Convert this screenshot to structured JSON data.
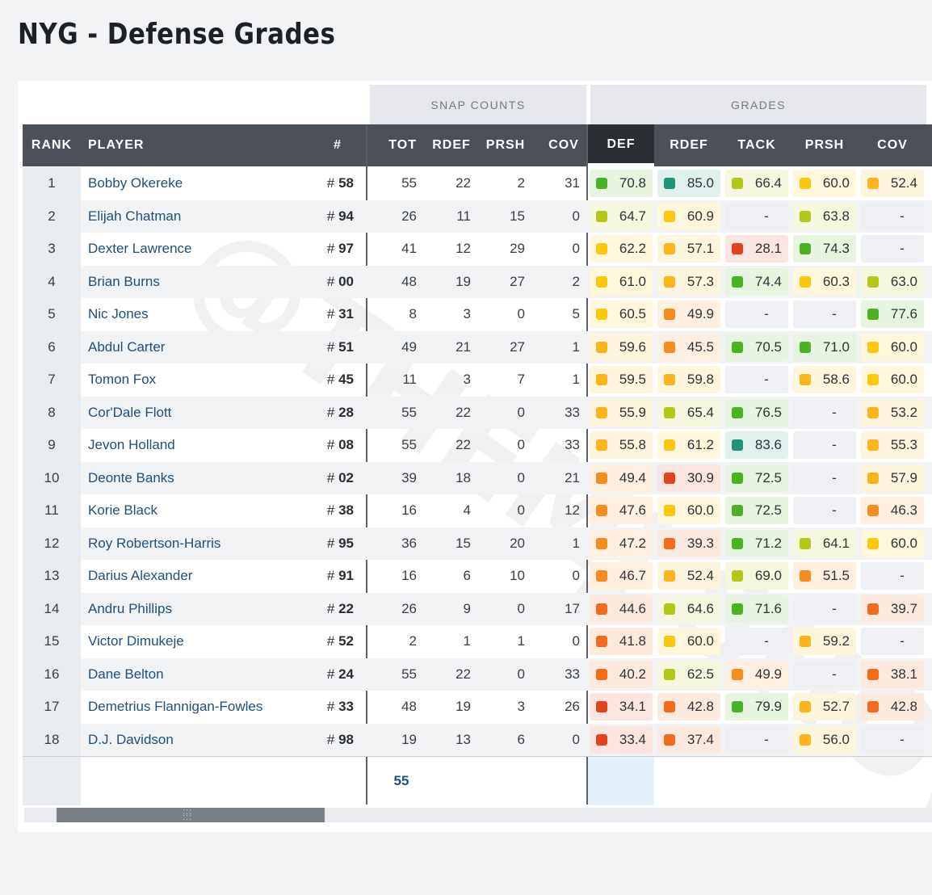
{
  "title": "NYG - Defense Grades",
  "watermark": "@THEMJ SHOW",
  "groups": {
    "snap": "SNAP COUNTS",
    "grades": "GRADES"
  },
  "headers": {
    "rank": "RANK",
    "player": "PLAYER",
    "num": "#",
    "tot": "TOT",
    "rdef": "RDEF",
    "prsh": "PRSH",
    "cov": "COV",
    "g_def": "DEF",
    "g_rdef": "RDEF",
    "g_tack": "TACK",
    "g_prsh": "PRSH",
    "g_cov": "COV"
  },
  "rows": [
    {
      "rank": "1",
      "name": "Bobby Okereke",
      "num": "58",
      "tot": "55",
      "rdef": "22",
      "prsh": "2",
      "cov": "31",
      "grades": [
        "70.8",
        "85.0",
        "66.4",
        "60.0",
        "52.4"
      ]
    },
    {
      "rank": "2",
      "name": "Elijah Chatman",
      "num": "94",
      "tot": "26",
      "rdef": "11",
      "prsh": "15",
      "cov": "0",
      "grades": [
        "64.7",
        "60.9",
        "-",
        "63.8",
        "-"
      ]
    },
    {
      "rank": "3",
      "name": "Dexter Lawrence",
      "num": "97",
      "tot": "41",
      "rdef": "12",
      "prsh": "29",
      "cov": "0",
      "grades": [
        "62.2",
        "57.1",
        "28.1",
        "74.3",
        "-"
      ]
    },
    {
      "rank": "4",
      "name": "Brian Burns",
      "num": "00",
      "tot": "48",
      "rdef": "19",
      "prsh": "27",
      "cov": "2",
      "grades": [
        "61.0",
        "57.3",
        "74.4",
        "60.3",
        "63.0"
      ]
    },
    {
      "rank": "5",
      "name": "Nic Jones",
      "num": "31",
      "tot": "8",
      "rdef": "3",
      "prsh": "0",
      "cov": "5",
      "grades": [
        "60.5",
        "49.9",
        "-",
        "-",
        "77.6"
      ]
    },
    {
      "rank": "6",
      "name": "Abdul Carter",
      "num": "51",
      "tot": "49",
      "rdef": "21",
      "prsh": "27",
      "cov": "1",
      "grades": [
        "59.6",
        "45.5",
        "70.5",
        "71.0",
        "60.0"
      ]
    },
    {
      "rank": "7",
      "name": "Tomon Fox",
      "num": "45",
      "tot": "11",
      "rdef": "3",
      "prsh": "7",
      "cov": "1",
      "grades": [
        "59.5",
        "59.8",
        "-",
        "58.6",
        "60.0"
      ]
    },
    {
      "rank": "8",
      "name": "Cor'Dale Flott",
      "num": "28",
      "tot": "55",
      "rdef": "22",
      "prsh": "0",
      "cov": "33",
      "grades": [
        "55.9",
        "65.4",
        "76.5",
        "-",
        "53.2"
      ]
    },
    {
      "rank": "9",
      "name": "Jevon Holland",
      "num": "08",
      "tot": "55",
      "rdef": "22",
      "prsh": "0",
      "cov": "33",
      "grades": [
        "55.8",
        "61.2",
        "83.6",
        "-",
        "55.3"
      ]
    },
    {
      "rank": "10",
      "name": "Deonte Banks",
      "num": "02",
      "tot": "39",
      "rdef": "18",
      "prsh": "0",
      "cov": "21",
      "grades": [
        "49.4",
        "30.9",
        "72.5",
        "-",
        "57.9"
      ]
    },
    {
      "rank": "11",
      "name": "Korie Black",
      "num": "38",
      "tot": "16",
      "rdef": "4",
      "prsh": "0",
      "cov": "12",
      "grades": [
        "47.6",
        "60.0",
        "72.5",
        "-",
        "46.3"
      ]
    },
    {
      "rank": "12",
      "name": "Roy Robertson-Harris",
      "num": "95",
      "tot": "36",
      "rdef": "15",
      "prsh": "20",
      "cov": "1",
      "grades": [
        "47.2",
        "39.3",
        "71.2",
        "64.1",
        "60.0"
      ]
    },
    {
      "rank": "13",
      "name": "Darius Alexander",
      "num": "91",
      "tot": "16",
      "rdef": "6",
      "prsh": "10",
      "cov": "0",
      "grades": [
        "46.7",
        "52.4",
        "69.0",
        "51.5",
        "-"
      ]
    },
    {
      "rank": "14",
      "name": "Andru Phillips",
      "num": "22",
      "tot": "26",
      "rdef": "9",
      "prsh": "0",
      "cov": "17",
      "grades": [
        "44.6",
        "64.6",
        "71.6",
        "-",
        "39.7"
      ]
    },
    {
      "rank": "15",
      "name": "Victor Dimukeje",
      "num": "52",
      "tot": "2",
      "rdef": "1",
      "prsh": "1",
      "cov": "0",
      "grades": [
        "41.8",
        "60.0",
        "-",
        "59.2",
        "-"
      ]
    },
    {
      "rank": "16",
      "name": "Dane Belton",
      "num": "24",
      "tot": "55",
      "rdef": "22",
      "prsh": "0",
      "cov": "33",
      "grades": [
        "40.2",
        "62.5",
        "49.9",
        "-",
        "38.1"
      ]
    },
    {
      "rank": "17",
      "name": "Demetrius Flannigan-Fowles",
      "num": "33",
      "tot": "48",
      "rdef": "19",
      "prsh": "3",
      "cov": "26",
      "grades": [
        "34.1",
        "42.8",
        "79.9",
        "52.7",
        "42.8"
      ]
    },
    {
      "rank": "18",
      "name": "D.J. Davidson",
      "num": "98",
      "tot": "19",
      "rdef": "13",
      "prsh": "6",
      "cov": "0",
      "grades": [
        "33.4",
        "37.4",
        "-",
        "56.0",
        "-"
      ]
    }
  ],
  "total": {
    "tot": "55"
  },
  "hash_symbol": "#",
  "colors": {
    "header_bg": "#4c5058",
    "active_header": "#2b2e33",
    "link": "#1f4f7a"
  }
}
